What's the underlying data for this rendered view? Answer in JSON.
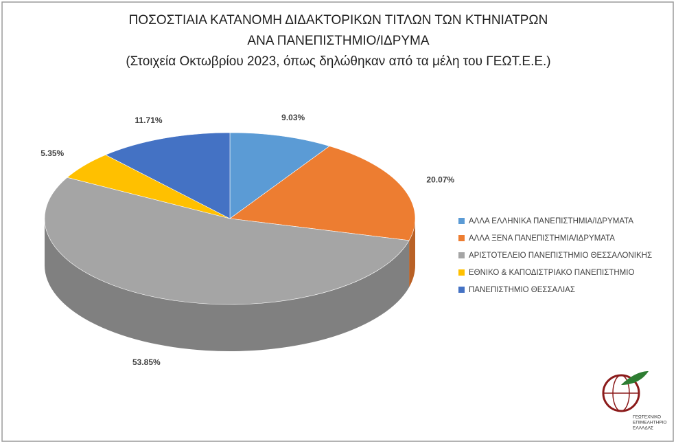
{
  "chart_data": {
    "type": "pie3d",
    "title": [
      "ΠΟΣΟΣΤΙΑΙΑ ΚΑΤΑΝΟΜΗ ΔΙΔΑΚΤΟΡΙΚΩΝ ΤΙΤΛΩΝ ΤΩΝ ΚΤΗΝΙΑΤΡΩΝ",
      "ΑΝΑ ΠΑΝΕΠΙΣΤΗΜΙΟ/ΙΔΡΥΜΑ"
    ],
    "subtitle": "(Στοιχεία Οκτωβρίου 2023, όπως δηλώθηκαν από τα μέλη του ΓΕΩΤ.Ε.Ε.)",
    "categories": [
      "ΑΛΛΑ ΕΛΛΗΝΙΚΑ ΠΑΝΕΠΙΣΤΗΜΙΑ/ΙΔΡΥΜΑΤΑ",
      "ΑΛΛΑ ΞΕΝΑ ΠΑΝΕΠΙΣΤΗΜΙΑ/ΙΔΡΥΜΑΤΑ",
      "ΑΡΙΣΤΟΤΕΛΕΙΟ ΠΑΝΕΠΙΣΤΗΜΙΟ ΘΕΣΣΑΛΟΝΙΚΗΣ",
      "ΕΘΝΙΚΟ & ΚΑΠΟΔΙΣΤΡΙΑΚΟ ΠΑΝΕΠΙΣΤΗΜΙΟ",
      "ΠΑΝΕΠΙΣΤΗΜΙΟ ΘΕΣΣΑΛΙΑΣ"
    ],
    "values": [
      9.03,
      20.07,
      53.85,
      5.35,
      11.71
    ],
    "value_labels": [
      "9.03%",
      "20.07%",
      "53.85%",
      "5.35%",
      "11.71%"
    ],
    "colors": [
      "#5b9bd5",
      "#ed7d31",
      "#a5a5a5",
      "#ffc000",
      "#4472c4"
    ],
    "legend": "right",
    "logo_text": [
      "ΓΕΩΤΕΧΝΙΚΟ",
      "ΕΠΙΜΕΛΗΤΗΡΙΟ",
      "ΕΛΛΑΔΑΣ"
    ]
  }
}
